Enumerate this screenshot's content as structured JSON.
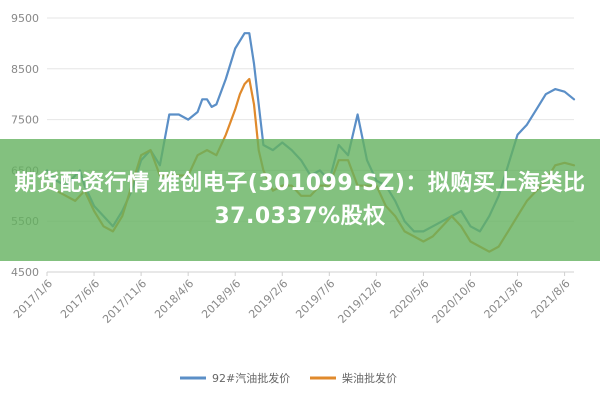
{
  "headline": "期货配资行情 雅创电子(301099.SZ)：拟购买上海类比37.0337%股权",
  "colors": {
    "series_92": "#5b8fc7",
    "series_diesel": "#e08a2c",
    "grid": "#e6e6e6",
    "axis_text": "#888888",
    "banner": "#64b25f"
  },
  "chart_data": {
    "type": "line",
    "ylim": [
      4500,
      9500
    ],
    "yticks": [
      4500,
      5500,
      6500,
      7500,
      8500,
      9500
    ],
    "x_tick_labels": [
      "2017/1/6",
      "2017/6/6",
      "2017/11/6",
      "2018/4/6",
      "2018/9/6",
      "2019/2/6",
      "2019/7/6",
      "2019/12/6",
      "2020/5/6",
      "2020/10/6",
      "2021/3/6",
      "2021/8/6"
    ],
    "x_tick_positions": [
      0,
      5,
      10,
      15,
      20,
      25,
      30,
      35,
      40,
      45,
      50,
      55
    ],
    "xlim": [
      0,
      56
    ],
    "legend_position": "bottom",
    "grid": true,
    "series": [
      {
        "name": "92#汽油批发价",
        "color_key": "series_92",
        "x": [
          0,
          0.5,
          1,
          2,
          3,
          3.5,
          4,
          5,
          6,
          7,
          8,
          9,
          10,
          11,
          12,
          13,
          14,
          15,
          16,
          16.5,
          17,
          17.5,
          18,
          19,
          20,
          21,
          21.5,
          22,
          22.5,
          23,
          24,
          25,
          26,
          27,
          28,
          29,
          30,
          31,
          32,
          33,
          34,
          35,
          36,
          37,
          38,
          39,
          40,
          41,
          42,
          43,
          44,
          45,
          46,
          47,
          48,
          49,
          50,
          51,
          52,
          53,
          54,
          55,
          56
        ],
        "y": [
          6500,
          6400,
          6300,
          6200,
          6400,
          6500,
          6200,
          5800,
          5600,
          5400,
          5700,
          6100,
          6700,
          6900,
          6600,
          7600,
          7600,
          7500,
          7650,
          7900,
          7900,
          7750,
          7800,
          8300,
          8900,
          9200,
          9200,
          8600,
          7800,
          7000,
          6900,
          7050,
          6900,
          6700,
          6400,
          6500,
          6300,
          7000,
          6800,
          7600,
          6700,
          6300,
          6200,
          5900,
          5500,
          5300,
          5300,
          5400,
          5500,
          5600,
          5700,
          5400,
          5300,
          5600,
          6000,
          6600,
          7200,
          7400,
          7700,
          8000,
          8100,
          8050,
          7900
        ]
      },
      {
        "name": "柴油批发价",
        "color_key": "series_diesel",
        "x": [
          0,
          1,
          2,
          3,
          4,
          5,
          6,
          7,
          8,
          9,
          10,
          11,
          12,
          13,
          14,
          15,
          16,
          17,
          18,
          19,
          20,
          20.5,
          21,
          21.5,
          22,
          22.5,
          23,
          24,
          25,
          26,
          27,
          28,
          29,
          30,
          31,
          32,
          33,
          34,
          35,
          36,
          37,
          38,
          39,
          40,
          41,
          42,
          43,
          44,
          45,
          46,
          47,
          48,
          49,
          50,
          51,
          52,
          53,
          54,
          55,
          56
        ],
        "y": [
          6200,
          6100,
          6000,
          5900,
          6100,
          5700,
          5400,
          5300,
          5600,
          6200,
          6800,
          6900,
          6400,
          6400,
          6400,
          6400,
          6800,
          6900,
          6800,
          7200,
          7700,
          8000,
          8200,
          8300,
          7800,
          6900,
          6500,
          6100,
          6200,
          6200,
          6000,
          6000,
          6200,
          6200,
          6700,
          6700,
          6200,
          6200,
          6200,
          5800,
          5600,
          5300,
          5200,
          5100,
          5200,
          5400,
          5600,
          5400,
          5100,
          5000,
          4900,
          5000,
          5300,
          5600,
          5900,
          6100,
          6300,
          6600,
          6650,
          6600
        ]
      }
    ]
  }
}
